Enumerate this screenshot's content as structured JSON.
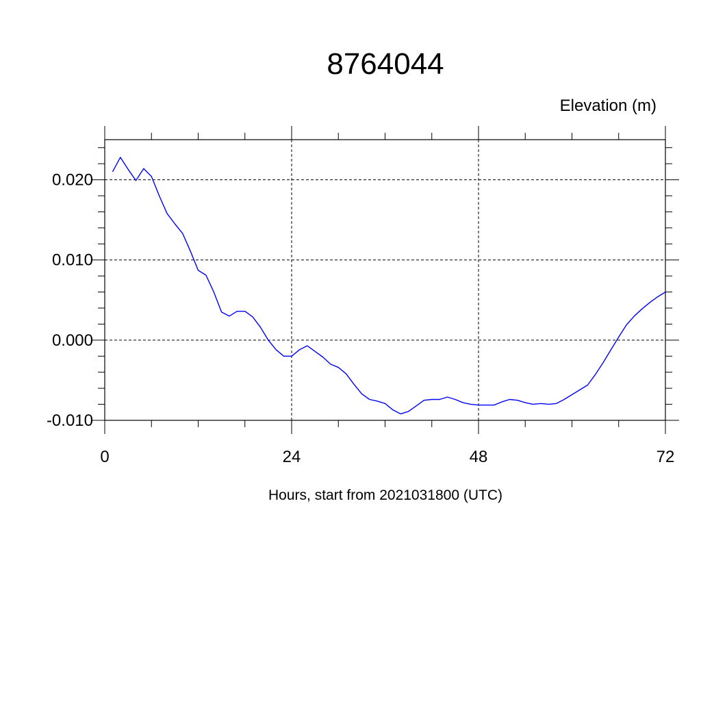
{
  "chart_data": {
    "type": "line",
    "title": "8764044",
    "ylabel": "Elevation (m)",
    "xlabel": "Hours, start from 2021031800 (UTC)",
    "xlim": [
      0,
      72
    ],
    "ylim": [
      -0.01,
      0.025
    ],
    "x_ticks": [
      0,
      24,
      48,
      72
    ],
    "x_tick_labels": [
      "0",
      "24",
      "48",
      "72"
    ],
    "y_ticks": [
      -0.01,
      0.0,
      0.01,
      0.02
    ],
    "y_tick_labels": [
      "-0.010",
      "0.000",
      "0.010",
      "0.020"
    ],
    "grid": true,
    "series": [
      {
        "color": "#0000ff",
        "x": [
          1,
          2,
          3,
          4,
          5,
          6,
          7,
          8,
          9,
          10,
          11,
          12,
          13,
          14,
          15,
          16,
          17,
          18,
          19,
          20,
          21,
          22,
          23,
          24,
          25,
          26,
          27,
          28,
          29,
          30,
          31,
          32,
          33,
          34,
          35,
          36,
          37,
          38,
          39,
          40,
          41,
          42,
          43,
          44,
          45,
          46,
          47,
          48,
          49,
          50,
          51,
          52,
          53,
          54,
          55,
          56,
          57,
          58,
          59,
          60,
          61,
          62,
          63,
          64,
          65,
          66,
          67,
          68,
          69,
          70,
          71,
          72
        ],
        "y": [
          0.021,
          0.0228,
          0.0213,
          0.0199,
          0.0214,
          0.0204,
          0.018,
          0.0158,
          0.0145,
          0.0133,
          0.0111,
          0.0087,
          0.0081,
          0.006,
          0.0035,
          0.003,
          0.0036,
          0.0036,
          0.0029,
          0.0016,
          0.0,
          -0.0012,
          -0.002,
          -0.002,
          -0.0012,
          -0.0007,
          -0.0014,
          -0.0021,
          -0.003,
          -0.0034,
          -0.0042,
          -0.0055,
          -0.0067,
          -0.0074,
          -0.0076,
          -0.0079,
          -0.0087,
          -0.0092,
          -0.0089,
          -0.0082,
          -0.0075,
          -0.0074,
          -0.0074,
          -0.0071,
          -0.0074,
          -0.0078,
          -0.008,
          -0.0081,
          -0.0081,
          -0.0081,
          -0.0077,
          -0.0074,
          -0.0075,
          -0.0078,
          -0.008,
          -0.0079,
          -0.008,
          -0.0079,
          -0.0074,
          -0.0068,
          -0.0062,
          -0.0056,
          -0.0043,
          -0.0028,
          -0.0012,
          0.0004,
          0.0019,
          0.003,
          0.0039,
          0.0047,
          0.0054,
          0.006
        ]
      }
    ]
  }
}
